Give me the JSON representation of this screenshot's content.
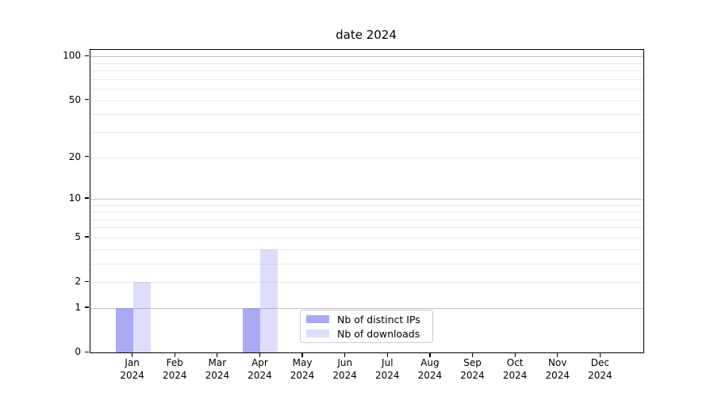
{
  "title": "date 2024",
  "chart_data": {
    "type": "bar",
    "title": "date 2024",
    "categories": [
      "Jan",
      "Feb",
      "Mar",
      "Apr",
      "May",
      "Jun",
      "Jul",
      "Aug",
      "Sep",
      "Oct",
      "Nov",
      "Dec"
    ],
    "year_label": "2024",
    "series": [
      {
        "name": "Nb of distinct IPs",
        "color": "rgba(136,136,240,0.72)",
        "values": [
          1,
          0,
          0,
          1,
          0,
          0,
          0,
          0,
          0,
          0,
          0,
          0
        ]
      },
      {
        "name": "Nb of downloads",
        "color": "rgba(136,136,240,0.28)",
        "values": [
          2,
          0,
          0,
          4,
          0,
          0,
          0,
          0,
          0,
          0,
          0,
          0
        ]
      }
    ],
    "xlabel": "",
    "ylabel": "",
    "y_scale": "log1p",
    "ylim": [
      0,
      111
    ],
    "y_ticks": [
      0,
      1,
      2,
      5,
      10,
      20,
      50,
      100
    ],
    "y_minor_ticks": [
      3,
      4,
      6,
      7,
      8,
      9,
      30,
      40,
      60,
      70,
      80,
      90
    ],
    "grid": true,
    "legend_position": "lower center",
    "colors": {
      "major_gridline": "#c2c2c2",
      "minor_gridline": "#e9e9e9",
      "axis_spine": "#000000",
      "tick_text": "#000000"
    }
  }
}
